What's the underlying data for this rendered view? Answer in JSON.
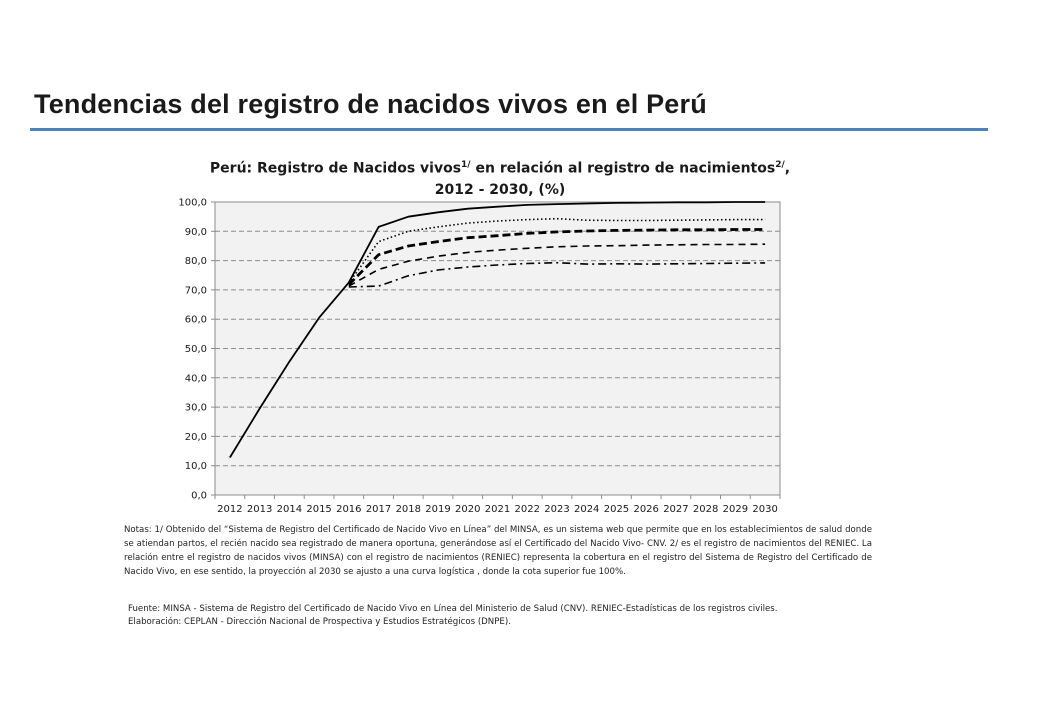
{
  "slide": {
    "title": "Tendencias del registro de nacidos vivos en el Perú"
  },
  "chart_title": {
    "line1_a": "Perú: Registro de Nacidos vivos",
    "line1_sup1": "1/",
    "line1_b": " en relación al registro de nacimientos",
    "line1_sup2": "2/",
    "line1_c": ",",
    "line2": "2012 - 2030, (%)"
  },
  "notes": "Notas: 1/ Obtenido del “Sistema de Registro del Certificado de Nacido Vivo en Línea” del MINSA, es un sistema web que permite que en los establecimientos de salud donde se atiendan partos, el recién nacido sea registrado de manera oportuna, generándose así el Certificado del Nacido Vivo- CNV. 2/ es el registro de nacimientos del RENIEC. La relación entre el registro de nacidos vivos (MINSA) con el registro de nacimientos (RENIEC) representa la cobertura en el registro del Sistema de Registro del Certificado de Nacido Vivo, en ese sentido, la proyección al 2030 se ajusto a una curva logística , donde la cota superior fue 100%.",
  "sources": {
    "fuente": "Fuente: MINSA - Sistema de Registro del Certificado de Nacido Vivo en Línea del Ministerio de Salud (CNV). RENIEC-Estadísticas de los registros civiles.",
    "elaboracion": "Elaboración: CEPLAN - Dirección Nacional de Prospectiva y Estudios Estratégicos (DNPE)."
  },
  "chart_data": {
    "type": "line",
    "x": [
      2012,
      2013,
      2014,
      2015,
      2016,
      2017,
      2018,
      2019,
      2020,
      2021,
      2022,
      2023,
      2024,
      2025,
      2026,
      2027,
      2028,
      2029,
      2030
    ],
    "x_tick_labels": [
      "2012",
      "2013",
      "2014",
      "2015",
      "2016",
      "2017",
      "2018",
      "2019",
      "2020",
      "2021",
      "2022",
      "2023",
      "2024",
      "2025",
      "2026",
      "2027",
      "2028",
      "2029",
      "2030"
    ],
    "y_tick_labels": [
      "0,0",
      "10,0",
      "20,0",
      "30,0",
      "40,0",
      "50,0",
      "60,0",
      "70,0",
      "80,0",
      "90,0",
      "100,0"
    ],
    "ylim": [
      0,
      100
    ],
    "grid": true,
    "legend": "none",
    "series": [
      {
        "style": "solid",
        "values": [
          12.8,
          29.5,
          45.5,
          60.5,
          72.5,
          91.5,
          95.0,
          96.5,
          97.7,
          98.4,
          99.0,
          99.3,
          99.5,
          99.7,
          99.8,
          99.9,
          99.9,
          100.0,
          100.0
        ]
      },
      {
        "style": "dotted",
        "values": [
          null,
          null,
          null,
          null,
          72.3,
          86.5,
          90.0,
          91.5,
          92.8,
          93.5,
          94.0,
          94.3,
          93.8,
          93.7,
          93.7,
          93.8,
          93.9,
          94.0,
          94.0
        ]
      },
      {
        "style": "dash-thick",
        "values": [
          null,
          null,
          null,
          null,
          71.8,
          82.0,
          85.0,
          86.5,
          87.8,
          88.5,
          89.3,
          89.8,
          90.1,
          90.3,
          90.4,
          90.5,
          90.5,
          90.6,
          90.6
        ]
      },
      {
        "style": "dash",
        "values": [
          null,
          null,
          null,
          null,
          71.3,
          77.0,
          79.8,
          81.5,
          82.8,
          83.6,
          84.2,
          84.7,
          85.0,
          85.1,
          85.3,
          85.4,
          85.5,
          85.5,
          85.6
        ]
      },
      {
        "style": "dash-dot",
        "values": [
          null,
          null,
          null,
          null,
          71.0,
          71.3,
          74.8,
          76.8,
          77.8,
          78.5,
          79.0,
          79.3,
          78.8,
          78.9,
          78.8,
          78.9,
          79.0,
          79.1,
          79.2
        ]
      }
    ]
  }
}
